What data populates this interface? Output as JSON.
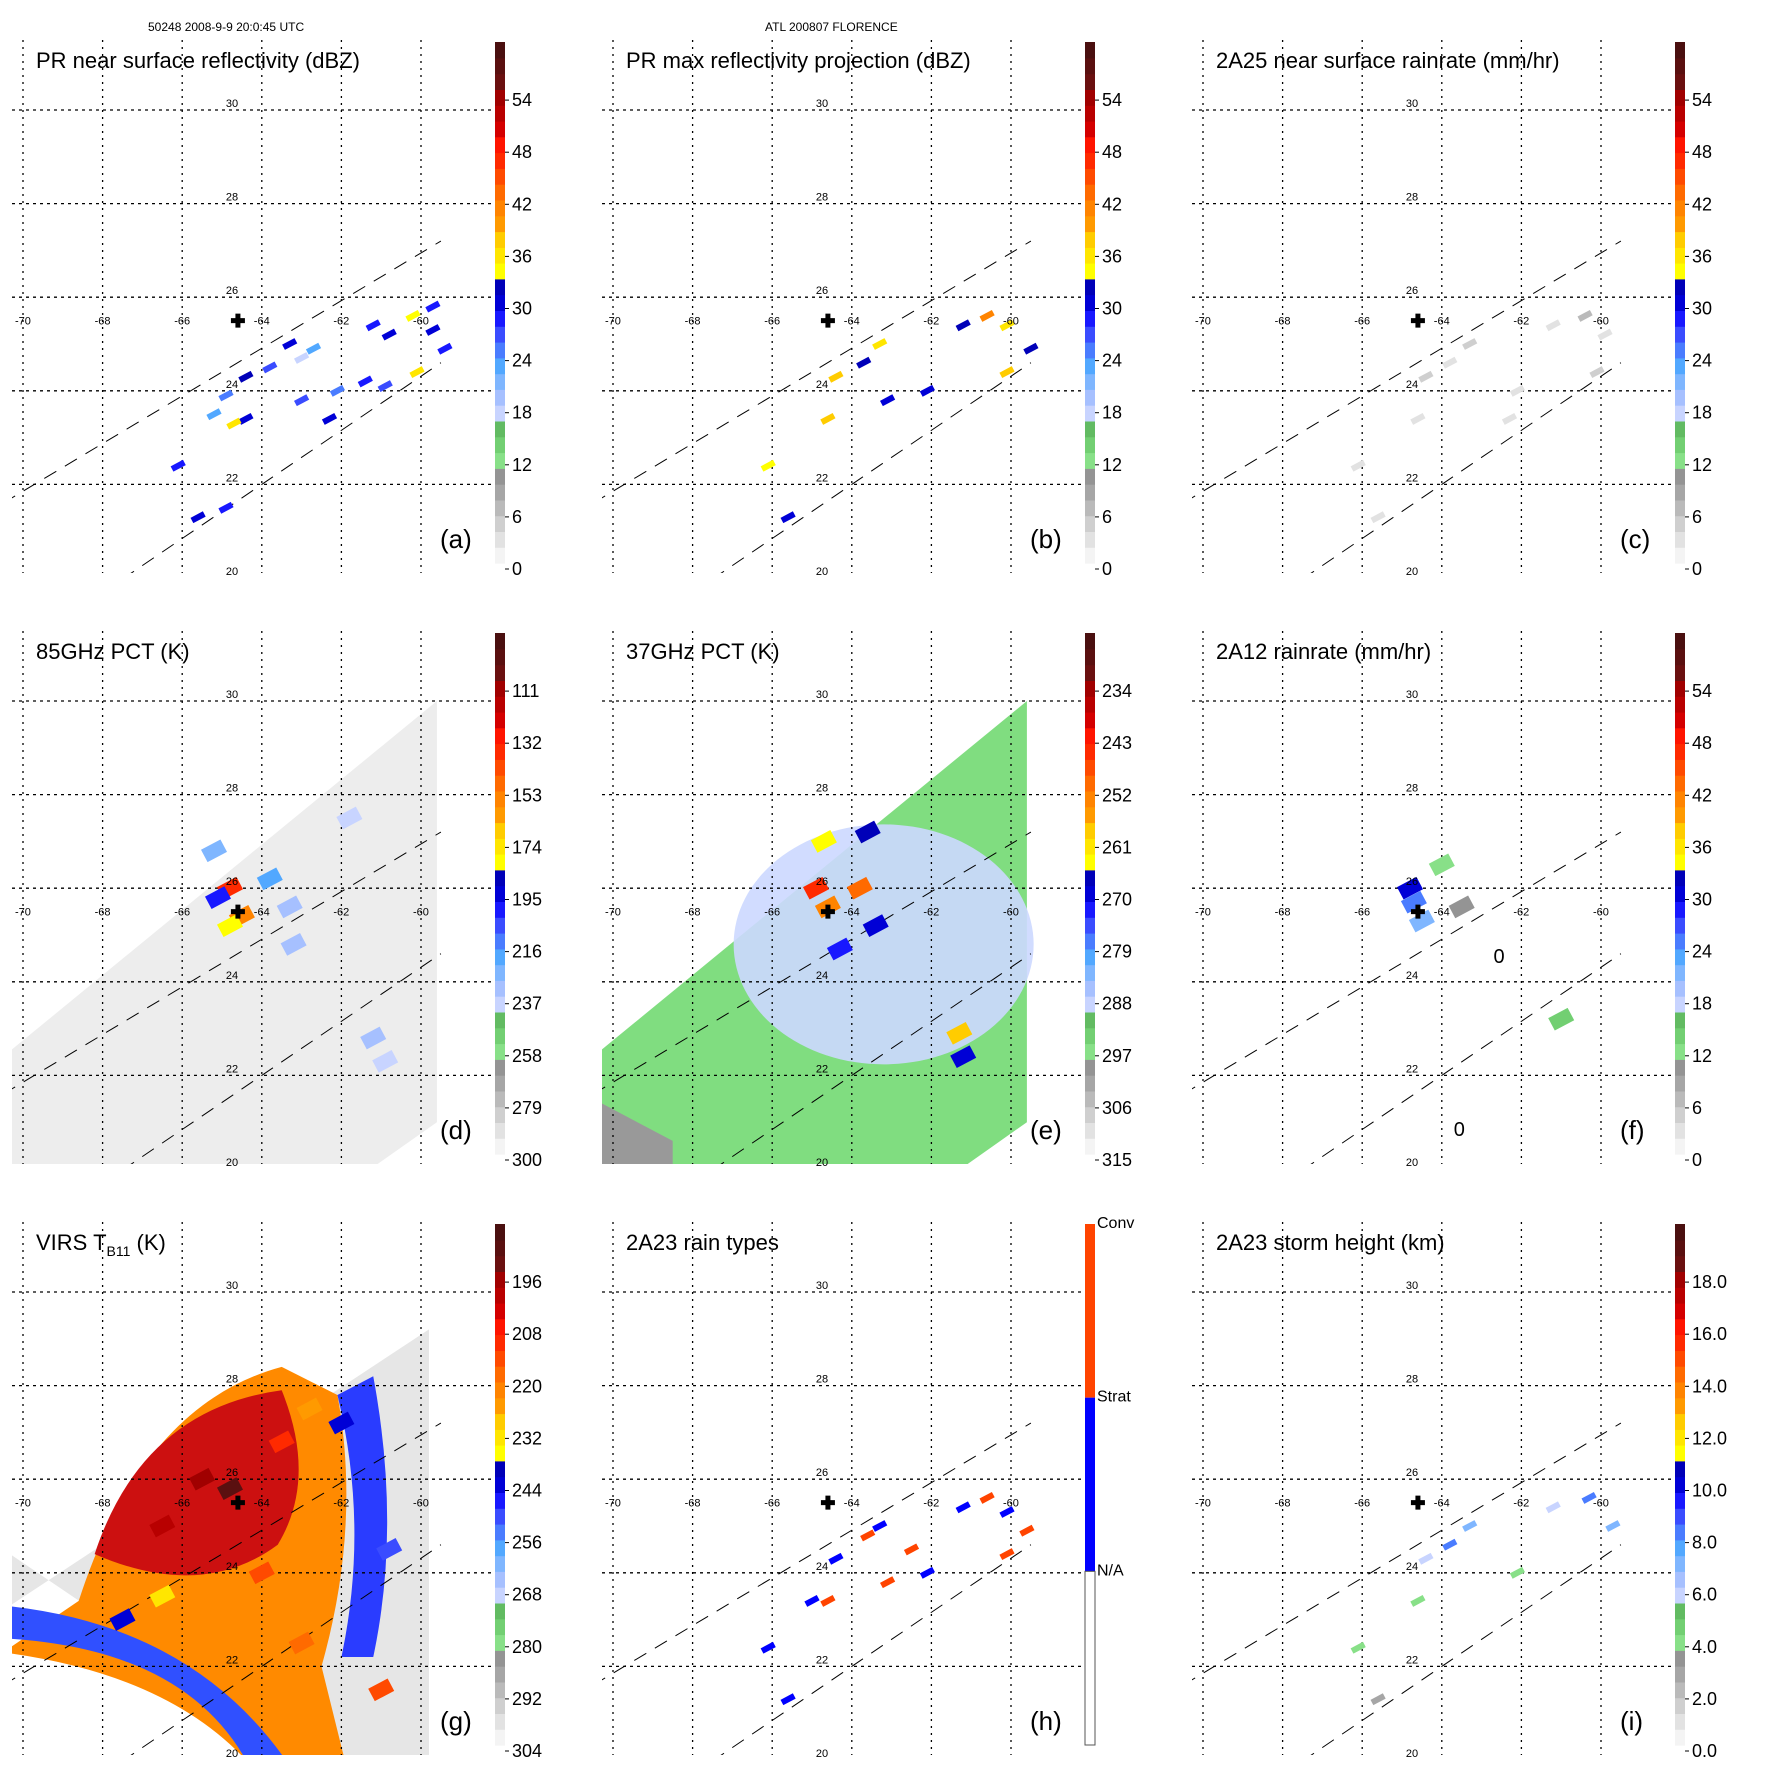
{
  "header": {
    "orbit_time": "50248 2008-9-9 20:0:45 UTC",
    "storm": "ATL 200807 FLORENCE"
  },
  "colors": {
    "palette": [
      "#f4f4f4",
      "#e2e2e2",
      "#cfcfcf",
      "#bababa",
      "#a6a6a6",
      "#949494",
      "#88e088",
      "#72cf72",
      "#62bb62",
      "#c8d4ff",
      "#a6c0ff",
      "#7fb6ff",
      "#52a8ff",
      "#4a7cff",
      "#3a4cff",
      "#1818ff",
      "#0000d6",
      "#0000b8",
      "#ffff00",
      "#ffe600",
      "#ffcc00",
      "#ff9a00",
      "#ff8400",
      "#ff6a00",
      "#ff4a00",
      "#ff2a00",
      "#ff1400",
      "#d40000",
      "#b80000",
      "#a00000",
      "#6a1010",
      "#5a1010",
      "#4a1010"
    ],
    "rain_types": {
      "na": "#ffffff",
      "strat": "#0000ff",
      "conv": "#ff4400"
    }
  },
  "chart_data": [
    {
      "type": "heatmap",
      "panel_label": "(a)",
      "title": "PR near surface reflectivity (dBZ)",
      "colorbar": {
        "ticks": [
          "0",
          "6",
          "12",
          "18",
          "24",
          "30",
          "36",
          "42",
          "48",
          "54"
        ],
        "range": [
          0,
          60
        ]
      },
      "grid": {
        "lon_ticks": [
          "-70",
          "-68",
          "-66",
          "-64",
          "-62",
          "-60"
        ],
        "lat_ticks": [
          "20",
          "22",
          "24",
          "26",
          "28",
          "30"
        ]
      },
      "storm_center": {
        "lon": -64.6,
        "lat": 25.5
      },
      "swath": "PR narrow swath",
      "cells": [
        [
          -63.3,
          25.0,
          30
        ],
        [
          -63.8,
          24.5,
          26
        ],
        [
          -64.4,
          24.3,
          32
        ],
        [
          -63.0,
          24.7,
          18
        ],
        [
          -62.7,
          24.9,
          22
        ],
        [
          -61.2,
          25.4,
          28
        ],
        [
          -60.8,
          25.2,
          30
        ],
        [
          -60.2,
          25.6,
          34
        ],
        [
          -59.7,
          25.3,
          30
        ],
        [
          -59.4,
          24.9,
          28
        ],
        [
          -61.4,
          24.2,
          28
        ],
        [
          -60.9,
          24.1,
          26
        ],
        [
          -62.1,
          24.0,
          24
        ],
        [
          -63.0,
          23.8,
          26
        ],
        [
          -64.4,
          23.4,
          30
        ],
        [
          -64.7,
          23.3,
          36
        ],
        [
          -65.2,
          23.5,
          22
        ],
        [
          -66.1,
          22.4,
          28
        ],
        [
          -65.6,
          21.3,
          30
        ],
        [
          -64.9,
          21.5,
          28
        ],
        [
          -62.3,
          23.4,
          30
        ],
        [
          -64.9,
          23.9,
          24
        ],
        [
          -59.7,
          25.8,
          28
        ],
        [
          -60.1,
          24.4,
          36
        ]
      ]
    },
    {
      "type": "heatmap",
      "panel_label": "(b)",
      "title": "PR max reflectivity projection (dBZ)",
      "colorbar": {
        "ticks": [
          "0",
          "6",
          "12",
          "18",
          "24",
          "30",
          "36",
          "42",
          "48",
          "54"
        ],
        "range": [
          0,
          60
        ]
      },
      "grid": {
        "lon_ticks": [
          "-70",
          "-68",
          "-66",
          "-64",
          "-62",
          "-60"
        ],
        "lat_ticks": [
          "20",
          "22",
          "24",
          "26",
          "28",
          "30"
        ]
      },
      "storm_center": {
        "lon": -64.6,
        "lat": 25.5
      },
      "swath": "PR narrow swath",
      "cells": [
        [
          -63.3,
          25.0,
          36
        ],
        [
          -63.7,
          24.6,
          32
        ],
        [
          -64.4,
          24.3,
          38
        ],
        [
          -61.2,
          25.4,
          32
        ],
        [
          -60.6,
          25.6,
          40
        ],
        [
          -60.1,
          25.4,
          36
        ],
        [
          -59.5,
          24.9,
          32
        ],
        [
          -62.1,
          24.0,
          30
        ],
        [
          -64.6,
          23.4,
          38
        ],
        [
          -66.1,
          22.4,
          34
        ],
        [
          -65.6,
          21.3,
          30
        ],
        [
          -60.1,
          24.4,
          38
        ],
        [
          -63.1,
          23.8,
          30
        ]
      ]
    },
    {
      "type": "heatmap",
      "panel_label": "(c)",
      "title": "2A25 near surface rainrate (mm/hr)",
      "colorbar": {
        "ticks": [
          "0",
          "6",
          "12",
          "18",
          "24",
          "30",
          "36",
          "42",
          "48",
          "54"
        ],
        "range": [
          0,
          60
        ]
      },
      "grid": {
        "lon_ticks": [
          "-70",
          "-68",
          "-66",
          "-64",
          "-62",
          "-60"
        ],
        "lat_ticks": [
          "20",
          "22",
          "24",
          "26",
          "28",
          "30"
        ]
      },
      "storm_center": {
        "lon": -64.6,
        "lat": 25.5
      },
      "swath": "PR narrow swath",
      "cells": [
        [
          -63.3,
          25.0,
          4
        ],
        [
          -63.8,
          24.6,
          3
        ],
        [
          -64.4,
          24.3,
          5
        ],
        [
          -61.2,
          25.4,
          3
        ],
        [
          -60.4,
          25.6,
          6
        ],
        [
          -59.9,
          25.2,
          3
        ],
        [
          -60.1,
          24.4,
          4
        ],
        [
          -62.1,
          24.0,
          2
        ],
        [
          -64.6,
          23.4,
          3
        ],
        [
          -66.1,
          22.4,
          2
        ],
        [
          -65.6,
          21.3,
          2
        ],
        [
          -62.3,
          23.4,
          2
        ]
      ]
    },
    {
      "type": "heatmap",
      "panel_label": "(d)",
      "title": "85GHz PCT (K)",
      "colorbar": {
        "ticks": [
          "300",
          "279",
          "258",
          "237",
          "216",
          "195",
          "174",
          "153",
          "132",
          "111"
        ],
        "range": [
          300,
          90
        ],
        "inverted": true
      },
      "grid": {
        "lon_ticks": [
          "-70",
          "-68",
          "-66",
          "-64",
          "-62",
          "-60"
        ],
        "lat_ticks": [
          "20",
          "22",
          "24",
          "26",
          "28",
          "30"
        ]
      },
      "storm_center": {
        "lon": -64.6,
        "lat": 25.5
      },
      "swath": "TMI wide swath",
      "cells": [
        [
          -64.8,
          26.0,
          140
        ],
        [
          -65.1,
          25.8,
          200
        ],
        [
          -64.5,
          25.4,
          160
        ],
        [
          -65.2,
          26.8,
          230
        ],
        [
          -63.8,
          26.2,
          220
        ],
        [
          -63.3,
          25.6,
          235
        ],
        [
          -63.2,
          24.8,
          235
        ],
        [
          -64.8,
          25.2,
          180
        ],
        [
          -61.2,
          22.8,
          235
        ],
        [
          -60.9,
          22.3,
          237
        ],
        [
          -61.8,
          27.5,
          237
        ]
      ]
    },
    {
      "type": "heatmap",
      "panel_label": "(e)",
      "title": "37GHz PCT (K)",
      "colorbar": {
        "ticks": [
          "315",
          "306",
          "297",
          "288",
          "279",
          "270",
          "261",
          "252",
          "243",
          "234"
        ],
        "range": [
          315,
          225
        ],
        "inverted": true
      },
      "grid": {
        "lon_ticks": [
          "-70",
          "-68",
          "-66",
          "-64",
          "-62",
          "-60"
        ],
        "lat_ticks": [
          "20",
          "22",
          "24",
          "26",
          "28",
          "30"
        ]
      },
      "storm_center": {
        "lon": -64.6,
        "lat": 25.5
      },
      "swath": "TMI wide swath",
      "cells": [
        [
          -64.9,
          26.0,
          245
        ],
        [
          -64.6,
          25.6,
          255
        ],
        [
          -63.8,
          26.0,
          252
        ],
        [
          -64.7,
          27.0,
          265
        ],
        [
          -63.6,
          27.2,
          268
        ],
        [
          -63.4,
          25.2,
          270
        ],
        [
          -64.3,
          24.7,
          272
        ],
        [
          -61.3,
          22.9,
          258
        ],
        [
          -61.2,
          22.4,
          270
        ]
      ]
    },
    {
      "type": "heatmap",
      "panel_label": "(f)",
      "title": "2A12 rainrate (mm/hr)",
      "colorbar": {
        "ticks": [
          "0",
          "6",
          "12",
          "18",
          "24",
          "30",
          "36",
          "42",
          "48",
          "54"
        ],
        "range": [
          0,
          60
        ]
      },
      "grid": {
        "lon_ticks": [
          "-70",
          "-68",
          "-66",
          "-64",
          "-62",
          "-60"
        ],
        "lat_ticks": [
          "20",
          "22",
          "24",
          "26",
          "28",
          "30"
        ]
      },
      "storm_center": {
        "lon": -64.6,
        "lat": 25.5
      },
      "swath": "TMI wide swath",
      "contour_labels": [
        "0",
        "0"
      ],
      "cells": [
        [
          -64.8,
          26.0,
          30
        ],
        [
          -64.7,
          25.7,
          24
        ],
        [
          -64.5,
          25.3,
          20
        ],
        [
          -64.0,
          26.5,
          12
        ],
        [
          -63.5,
          25.6,
          10
        ],
        [
          -61.0,
          23.2,
          14
        ]
      ]
    },
    {
      "type": "heatmap",
      "panel_label": "(g)",
      "title": "VIRS T",
      "title_subscript": "B11",
      "title_suffix": " (K)",
      "colorbar": {
        "ticks": [
          "304",
          "292",
          "280",
          "268",
          "256",
          "244",
          "232",
          "220",
          "208",
          "196"
        ],
        "range": [
          304,
          184
        ],
        "inverted": true
      },
      "grid": {
        "lon_ticks": [
          "-70",
          "-68",
          "-66",
          "-64",
          "-62",
          "-60"
        ],
        "lat_ticks": [
          "20",
          "22",
          "24",
          "26",
          "28",
          "30"
        ]
      },
      "storm_center": {
        "lon": -64.6,
        "lat": 25.5
      },
      "swath": "VIRS swath",
      "cells": [
        [
          -65.5,
          26.0,
          195
        ],
        [
          -64.8,
          25.8,
          188
        ],
        [
          -66.5,
          25.0,
          200
        ],
        [
          -63.5,
          26.8,
          210
        ],
        [
          -62.8,
          27.5,
          225
        ],
        [
          -62.0,
          27.2,
          245
        ],
        [
          -64.0,
          24.0,
          215
        ],
        [
          -66.5,
          23.5,
          232
        ],
        [
          -67.5,
          23.0,
          244
        ],
        [
          -63.0,
          22.5,
          220
        ],
        [
          -61.0,
          21.5,
          215
        ],
        [
          -60.8,
          24.5,
          250
        ]
      ]
    },
    {
      "type": "heatmap",
      "panel_label": "(h)",
      "title": "2A23 rain types",
      "colorbar": {
        "ticks": [
          "N/A",
          "Strat",
          "Conv"
        ],
        "categorical": true
      },
      "grid": {
        "lon_ticks": [
          "-70",
          "-68",
          "-66",
          "-64",
          "-62",
          "-60"
        ],
        "lat_ticks": [
          "20",
          "22",
          "24",
          "26",
          "28",
          "30"
        ]
      },
      "storm_center": {
        "lon": -64.6,
        "lat": 25.5
      },
      "swath": "PR narrow swath",
      "cells": [
        [
          -63.3,
          25.0,
          "strat"
        ],
        [
          -63.6,
          24.8,
          "conv"
        ],
        [
          -64.4,
          24.3,
          "strat"
        ],
        [
          -61.2,
          25.4,
          "strat"
        ],
        [
          -60.6,
          25.6,
          "conv"
        ],
        [
          -60.1,
          25.3,
          "strat"
        ],
        [
          -59.6,
          24.9,
          "conv"
        ],
        [
          -62.1,
          24.0,
          "strat"
        ],
        [
          -64.6,
          23.4,
          "conv"
        ],
        [
          -65.0,
          23.4,
          "strat"
        ],
        [
          -66.1,
          22.4,
          "strat"
        ],
        [
          -65.6,
          21.3,
          "strat"
        ],
        [
          -60.1,
          24.4,
          "conv"
        ],
        [
          -63.1,
          23.8,
          "conv"
        ],
        [
          -62.5,
          24.5,
          "conv"
        ]
      ]
    },
    {
      "type": "heatmap",
      "panel_label": "(i)",
      "title": "2A23 storm height (km)",
      "colorbar": {
        "ticks": [
          "0.0",
          "2.0",
          "4.0",
          "6.0",
          "8.0",
          "10.0",
          "12.0",
          "14.0",
          "16.0",
          "18.0"
        ],
        "range": [
          0,
          20
        ]
      },
      "grid": {
        "lon_ticks": [
          "-70",
          "-68",
          "-66",
          "-64",
          "-62",
          "-60"
        ],
        "lat_ticks": [
          "20",
          "22",
          "24",
          "26",
          "28",
          "30"
        ]
      },
      "storm_center": {
        "lon": -64.6,
        "lat": 25.5
      },
      "swath": "PR narrow swath",
      "cells": [
        [
          -63.3,
          25.0,
          7
        ],
        [
          -63.8,
          24.6,
          8
        ],
        [
          -64.4,
          24.3,
          6
        ],
        [
          -61.2,
          25.4,
          6
        ],
        [
          -60.3,
          25.6,
          8
        ],
        [
          -59.7,
          25.0,
          7
        ],
        [
          -62.1,
          24.0,
          4
        ],
        [
          -64.6,
          23.4,
          4
        ],
        [
          -66.1,
          22.4,
          4
        ],
        [
          -65.6,
          21.3,
          3
        ]
      ]
    }
  ]
}
